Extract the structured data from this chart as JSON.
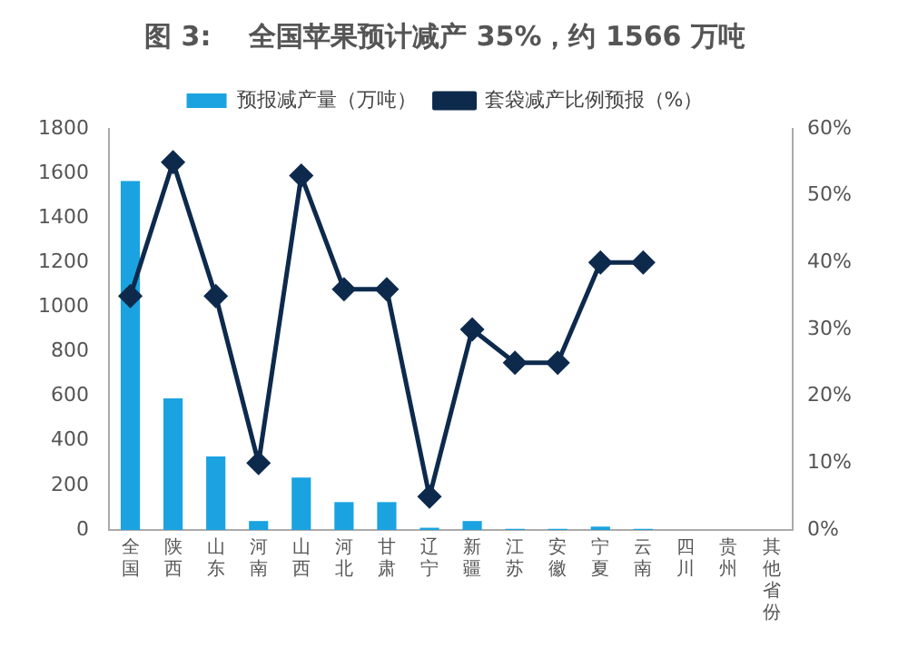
{
  "chart_data": {
    "type": "bar",
    "title": "图 3:    全国苹果预计减产 35%，约 1566 万吨",
    "categories": [
      "全国",
      "陕西",
      "山东",
      "河南",
      "山西",
      "河北",
      "甘肃",
      "辽宁",
      "新疆",
      "江苏",
      "安徽",
      "宁夏",
      "云南",
      "四川",
      "贵州",
      "其他省份"
    ],
    "series": [
      {
        "name": "预报减产量（万吨）",
        "color": "#1aa3e0",
        "values": [
          1566,
          590,
          330,
          40,
          235,
          125,
          125,
          10,
          40,
          5,
          5,
          15,
          5,
          0,
          0,
          0
        ]
      },
      {
        "name": "套袋减产比例预报（%）",
        "type": "line",
        "axis": "y2",
        "color": "#0d2a4d",
        "marker": "diamond",
        "values": [
          35,
          55,
          35,
          10,
          53,
          36,
          36,
          5,
          30,
          25,
          25,
          40,
          40,
          null,
          null,
          null
        ]
      }
    ],
    "ylim": [
      0,
      1800
    ],
    "yticks": [
      0,
      200,
      400,
      600,
      800,
      1000,
      1200,
      1400,
      1600,
      1800
    ],
    "y2lim": [
      0,
      60
    ],
    "y2ticks": [
      {
        "value": 0,
        "label": "0%"
      },
      {
        "value": 10,
        "label": "10%"
      },
      {
        "value": 20,
        "label": "20%"
      },
      {
        "value": 30,
        "label": "30%"
      },
      {
        "value": 40,
        "label": "40%"
      },
      {
        "value": 50,
        "label": "50%"
      },
      {
        "value": 60,
        "label": "60%"
      }
    ],
    "grid": false,
    "legend": "top"
  }
}
